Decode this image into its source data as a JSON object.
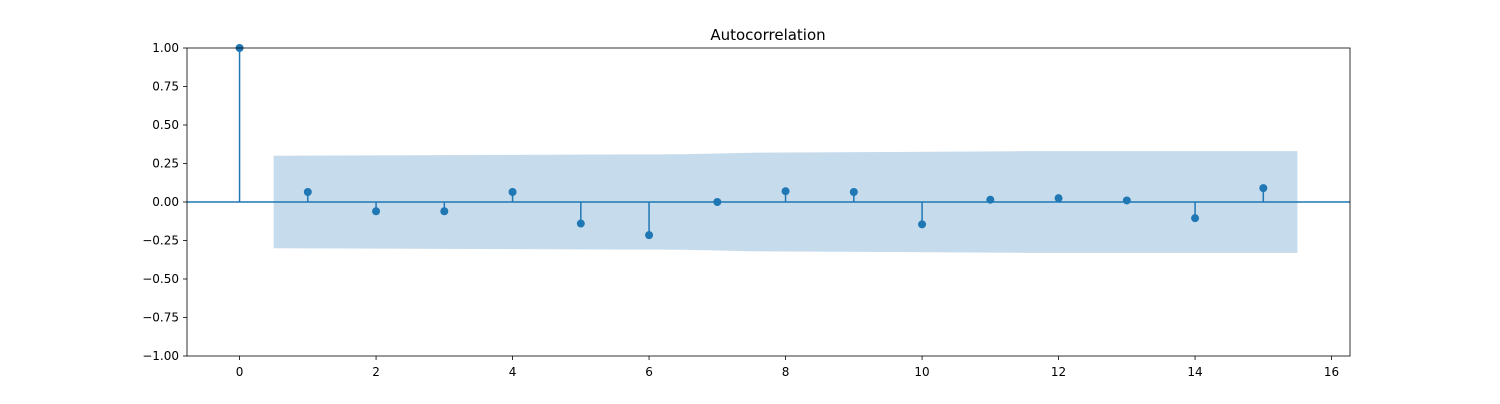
{
  "chart_data": {
    "type": "stem",
    "title": "Autocorrelation",
    "xlabel": "",
    "ylabel": "",
    "xlim": [
      -0.77,
      16.27
    ],
    "ylim": [
      -1.0,
      1.0
    ],
    "xticks": [
      0,
      2,
      4,
      6,
      8,
      10,
      12,
      14,
      16
    ],
    "xtick_labels": [
      "0",
      "2",
      "4",
      "6",
      "8",
      "10",
      "12",
      "14",
      "16"
    ],
    "yticks": [
      -1.0,
      -0.75,
      -0.5,
      -0.25,
      0.0,
      0.25,
      0.5,
      0.75,
      1.0
    ],
    "ytick_labels": [
      "−1.00",
      "−0.75",
      "−0.50",
      "−0.25",
      "0.00",
      "0.25",
      "0.50",
      "0.75",
      "1.00"
    ],
    "grid": false,
    "legend": false,
    "series": [
      {
        "lags": [
          0,
          1,
          2,
          3,
          4,
          5,
          6,
          7,
          8,
          9,
          10,
          11,
          12,
          13,
          14,
          15
        ],
        "values": [
          1.0,
          0.065,
          -0.06,
          -0.06,
          0.065,
          -0.14,
          -0.215,
          0.0,
          0.07,
          0.065,
          -0.145,
          0.015,
          0.025,
          0.01,
          -0.105,
          0.09
        ]
      }
    ],
    "confidence_band": {
      "x": [
        0.5,
        6.5,
        7.5,
        11.5,
        15.5
      ],
      "upper": [
        0.3,
        0.31,
        0.32,
        0.33,
        0.33
      ],
      "lower": [
        -0.3,
        -0.31,
        -0.32,
        -0.33,
        -0.33
      ]
    },
    "colors": {
      "stem": "#1f77b4",
      "band": "#c6dbec",
      "zero_line": "#1f77b4",
      "axes": "#000000"
    }
  }
}
